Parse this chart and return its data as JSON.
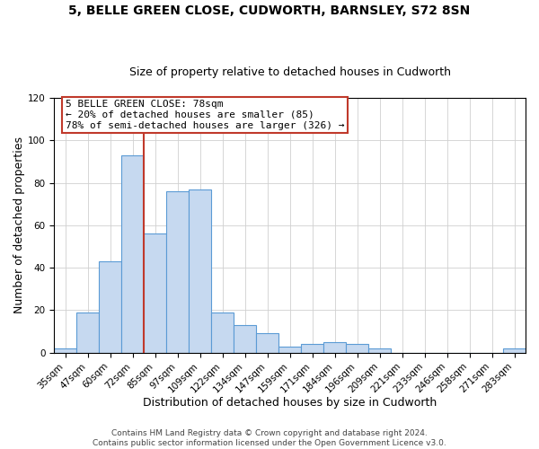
{
  "title": "5, BELLE GREEN CLOSE, CUDWORTH, BARNSLEY, S72 8SN",
  "subtitle": "Size of property relative to detached houses in Cudworth",
  "xlabel": "Distribution of detached houses by size in Cudworth",
  "ylabel": "Number of detached properties",
  "bar_labels": [
    "35sqm",
    "47sqm",
    "60sqm",
    "72sqm",
    "85sqm",
    "97sqm",
    "109sqm",
    "122sqm",
    "134sqm",
    "147sqm",
    "159sqm",
    "171sqm",
    "184sqm",
    "196sqm",
    "209sqm",
    "221sqm",
    "233sqm",
    "246sqm",
    "258sqm",
    "271sqm",
    "283sqm"
  ],
  "bar_values": [
    2,
    19,
    43,
    93,
    56,
    76,
    77,
    19,
    13,
    9,
    3,
    4,
    5,
    4,
    2,
    0,
    0,
    0,
    0,
    0,
    2
  ],
  "bar_color": "#c6d9f0",
  "bar_edge_color": "#5b9bd5",
  "ylim": [
    0,
    120
  ],
  "yticks": [
    0,
    20,
    40,
    60,
    80,
    100,
    120
  ],
  "property_line_color": "#c0392b",
  "annotation_title": "5 BELLE GREEN CLOSE: 78sqm",
  "annotation_line1": "← 20% of detached houses are smaller (85)",
  "annotation_line2": "78% of semi-detached houses are larger (326) →",
  "annotation_box_color": "#ffffff",
  "annotation_box_edge": "#c0392b",
  "footer1": "Contains HM Land Registry data © Crown copyright and database right 2024.",
  "footer2": "Contains public sector information licensed under the Open Government Licence v3.0.",
  "background_color": "#ffffff",
  "grid_color": "#d0d0d0",
  "title_fontsize": 10,
  "subtitle_fontsize": 9,
  "axis_label_fontsize": 9,
  "tick_fontsize": 7.5,
  "footer_fontsize": 6.5
}
